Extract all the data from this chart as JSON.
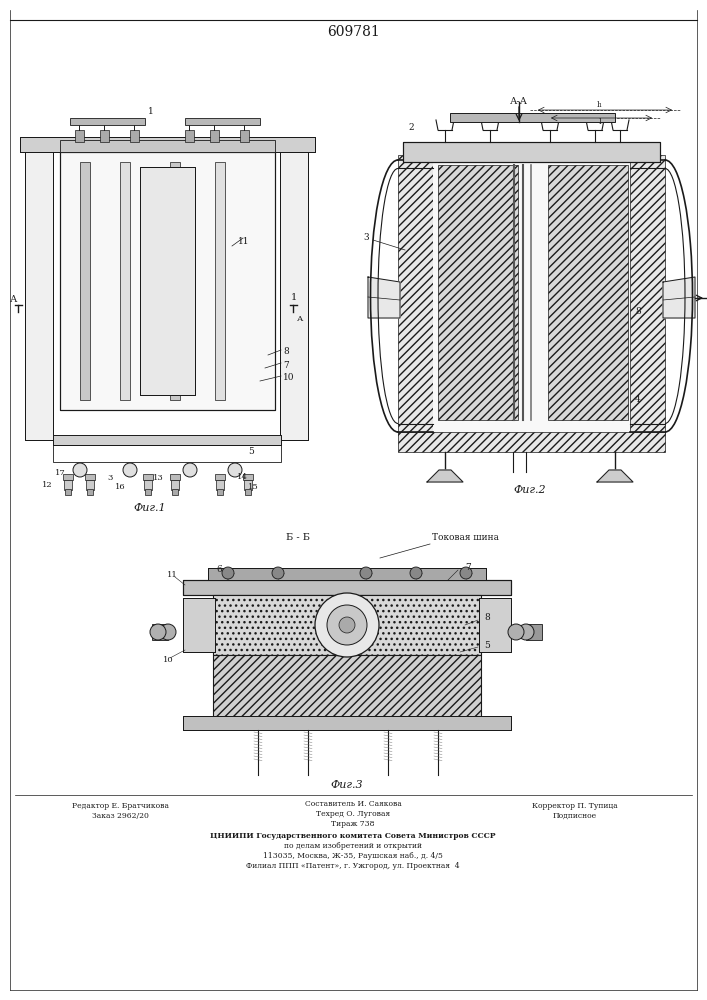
{
  "title": "609781",
  "line_color": "#1a1a1a",
  "fig1_caption": "Фиг.1",
  "fig2_caption": "Фиг.2",
  "fig3_caption": "Фиг.3",
  "bottom_texts": [
    [
      "Редактор Е. Братчикова",
      "Заказ 2962/20"
    ],
    [
      "Составитель И. Саякова",
      "Техред О. Луговая",
      "Тираж 738"
    ],
    [
      "Корректор П. Тупица",
      "Подписное"
    ]
  ],
  "footer_line1": "ЦНИИПИ Государственного комитета Совета Министров СССР",
  "footer_line2": "по делам изобретений и открытий",
  "footer_line3": "113035, Москва, Ж-35, Раушская наб., д. 4/5",
  "footer_line4": "Филиал ППП «Патент», г. Ужгород, ул. Проектная  4"
}
